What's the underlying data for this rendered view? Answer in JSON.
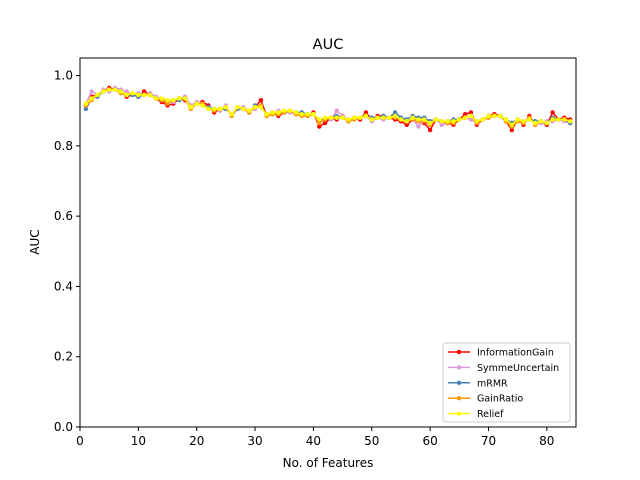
{
  "chart_data": {
    "type": "line",
    "title": "AUC",
    "xlabel": "No. of Features",
    "ylabel": "AUC",
    "xlim": [
      0,
      85
    ],
    "ylim": [
      0.0,
      1.05
    ],
    "xticks": [
      0,
      10,
      20,
      30,
      40,
      50,
      60,
      70,
      80
    ],
    "yticks": [
      0.0,
      0.2,
      0.4,
      0.6,
      0.8,
      1.0
    ],
    "xtick_labels": [
      "0",
      "10",
      "20",
      "30",
      "40",
      "50",
      "60",
      "70",
      "80"
    ],
    "ytick_labels": [
      "0.0",
      "0.2",
      "0.4",
      "0.6",
      "0.8",
      "1.0"
    ],
    "grid": false,
    "legend_position": "lower-right",
    "x": [
      1,
      2,
      3,
      4,
      5,
      6,
      7,
      8,
      9,
      10,
      11,
      12,
      13,
      14,
      15,
      16,
      17,
      18,
      19,
      20,
      21,
      22,
      23,
      24,
      25,
      26,
      27,
      28,
      29,
      30,
      31,
      32,
      33,
      34,
      35,
      36,
      37,
      38,
      39,
      40,
      41,
      42,
      43,
      44,
      45,
      46,
      47,
      48,
      49,
      50,
      51,
      52,
      53,
      54,
      55,
      56,
      57,
      58,
      59,
      60,
      61,
      62,
      63,
      64,
      65,
      66,
      67,
      68,
      69,
      70,
      71,
      72,
      73,
      74,
      75,
      76,
      77,
      78,
      79,
      80,
      81,
      82,
      83,
      84
    ],
    "series": [
      {
        "name": "InformationGain",
        "color": "#ff0000",
        "values": [
          0.915,
          0.94,
          0.945,
          0.955,
          0.965,
          0.96,
          0.955,
          0.94,
          0.945,
          0.94,
          0.955,
          0.945,
          0.935,
          0.925,
          0.915,
          0.92,
          0.935,
          0.93,
          0.91,
          0.92,
          0.925,
          0.915,
          0.895,
          0.905,
          0.91,
          0.89,
          0.91,
          0.905,
          0.895,
          0.91,
          0.93,
          0.885,
          0.895,
          0.885,
          0.895,
          0.9,
          0.895,
          0.89,
          0.885,
          0.895,
          0.855,
          0.865,
          0.88,
          0.875,
          0.885,
          0.87,
          0.88,
          0.875,
          0.895,
          0.875,
          0.885,
          0.885,
          0.88,
          0.875,
          0.87,
          0.86,
          0.875,
          0.87,
          0.865,
          0.845,
          0.875,
          0.87,
          0.865,
          0.86,
          0.875,
          0.89,
          0.895,
          0.86,
          0.875,
          0.885,
          0.89,
          0.885,
          0.87,
          0.845,
          0.875,
          0.86,
          0.885,
          0.86,
          0.87,
          0.86,
          0.895,
          0.875,
          0.88,
          0.875
        ]
      },
      {
        "name": "SymmeUncertain",
        "color": "#dd99dd",
        "values": [
          0.92,
          0.955,
          0.945,
          0.96,
          0.955,
          0.965,
          0.96,
          0.955,
          0.945,
          0.95,
          0.945,
          0.95,
          0.94,
          0.935,
          0.93,
          0.925,
          0.935,
          0.94,
          0.915,
          0.925,
          0.92,
          0.91,
          0.905,
          0.9,
          0.915,
          0.885,
          0.905,
          0.91,
          0.9,
          0.905,
          0.915,
          0.885,
          0.89,
          0.9,
          0.895,
          0.895,
          0.89,
          0.895,
          0.885,
          0.89,
          0.875,
          0.88,
          0.875,
          0.9,
          0.885,
          0.875,
          0.875,
          0.88,
          0.885,
          0.87,
          0.88,
          0.875,
          0.88,
          0.885,
          0.875,
          0.87,
          0.875,
          0.855,
          0.875,
          0.87,
          0.875,
          0.86,
          0.865,
          0.87,
          0.875,
          0.88,
          0.875,
          0.865,
          0.875,
          0.88,
          0.885,
          0.885,
          0.875,
          0.855,
          0.87,
          0.87,
          0.875,
          0.865,
          0.865,
          0.87,
          0.87,
          0.875,
          0.87,
          0.865
        ]
      },
      {
        "name": "mRMR",
        "color": "#4682b4",
        "values": [
          0.905,
          0.935,
          0.94,
          0.955,
          0.96,
          0.96,
          0.955,
          0.945,
          0.945,
          0.94,
          0.945,
          0.945,
          0.935,
          0.93,
          0.925,
          0.93,
          0.93,
          0.935,
          0.91,
          0.92,
          0.915,
          0.91,
          0.905,
          0.905,
          0.905,
          0.89,
          0.905,
          0.905,
          0.895,
          0.915,
          0.91,
          0.89,
          0.89,
          0.895,
          0.895,
          0.9,
          0.895,
          0.895,
          0.89,
          0.89,
          0.875,
          0.875,
          0.88,
          0.885,
          0.88,
          0.875,
          0.88,
          0.88,
          0.885,
          0.88,
          0.88,
          0.885,
          0.88,
          0.895,
          0.88,
          0.875,
          0.885,
          0.88,
          0.88,
          0.87,
          0.875,
          0.87,
          0.87,
          0.875,
          0.875,
          0.88,
          0.885,
          0.87,
          0.875,
          0.885,
          0.885,
          0.885,
          0.875,
          0.865,
          0.875,
          0.87,
          0.875,
          0.87,
          0.87,
          0.865,
          0.88,
          0.875,
          0.875,
          0.865
        ]
      },
      {
        "name": "GainRatio",
        "color": "#ff9900",
        "values": [
          0.915,
          0.93,
          0.945,
          0.955,
          0.96,
          0.96,
          0.95,
          0.945,
          0.95,
          0.945,
          0.945,
          0.945,
          0.935,
          0.93,
          0.92,
          0.93,
          0.935,
          0.935,
          0.905,
          0.92,
          0.92,
          0.905,
          0.9,
          0.905,
          0.91,
          0.885,
          0.91,
          0.905,
          0.895,
          0.91,
          0.915,
          0.885,
          0.89,
          0.89,
          0.895,
          0.9,
          0.89,
          0.885,
          0.885,
          0.89,
          0.865,
          0.875,
          0.88,
          0.88,
          0.88,
          0.87,
          0.875,
          0.88,
          0.885,
          0.875,
          0.88,
          0.88,
          0.88,
          0.88,
          0.875,
          0.87,
          0.875,
          0.87,
          0.87,
          0.86,
          0.875,
          0.87,
          0.865,
          0.865,
          0.875,
          0.88,
          0.885,
          0.865,
          0.875,
          0.88,
          0.885,
          0.885,
          0.87,
          0.855,
          0.87,
          0.865,
          0.88,
          0.86,
          0.87,
          0.865,
          0.875,
          0.875,
          0.875,
          0.87
        ]
      },
      {
        "name": "Relief",
        "color": "#ffff00",
        "values": [
          0.92,
          0.935,
          0.945,
          0.955,
          0.96,
          0.96,
          0.955,
          0.945,
          0.95,
          0.945,
          0.945,
          0.945,
          0.935,
          0.935,
          0.93,
          0.93,
          0.935,
          0.935,
          0.91,
          0.92,
          0.915,
          0.905,
          0.905,
          0.905,
          0.91,
          0.89,
          0.91,
          0.905,
          0.9,
          0.91,
          0.91,
          0.89,
          0.895,
          0.895,
          0.9,
          0.9,
          0.895,
          0.89,
          0.89,
          0.89,
          0.875,
          0.88,
          0.88,
          0.88,
          0.88,
          0.875,
          0.88,
          0.88,
          0.885,
          0.875,
          0.88,
          0.88,
          0.88,
          0.885,
          0.875,
          0.87,
          0.88,
          0.875,
          0.875,
          0.865,
          0.875,
          0.87,
          0.87,
          0.87,
          0.875,
          0.88,
          0.885,
          0.87,
          0.875,
          0.885,
          0.885,
          0.885,
          0.875,
          0.86,
          0.875,
          0.87,
          0.875,
          0.865,
          0.87,
          0.865,
          0.875,
          0.875,
          0.875,
          0.87
        ]
      }
    ]
  }
}
